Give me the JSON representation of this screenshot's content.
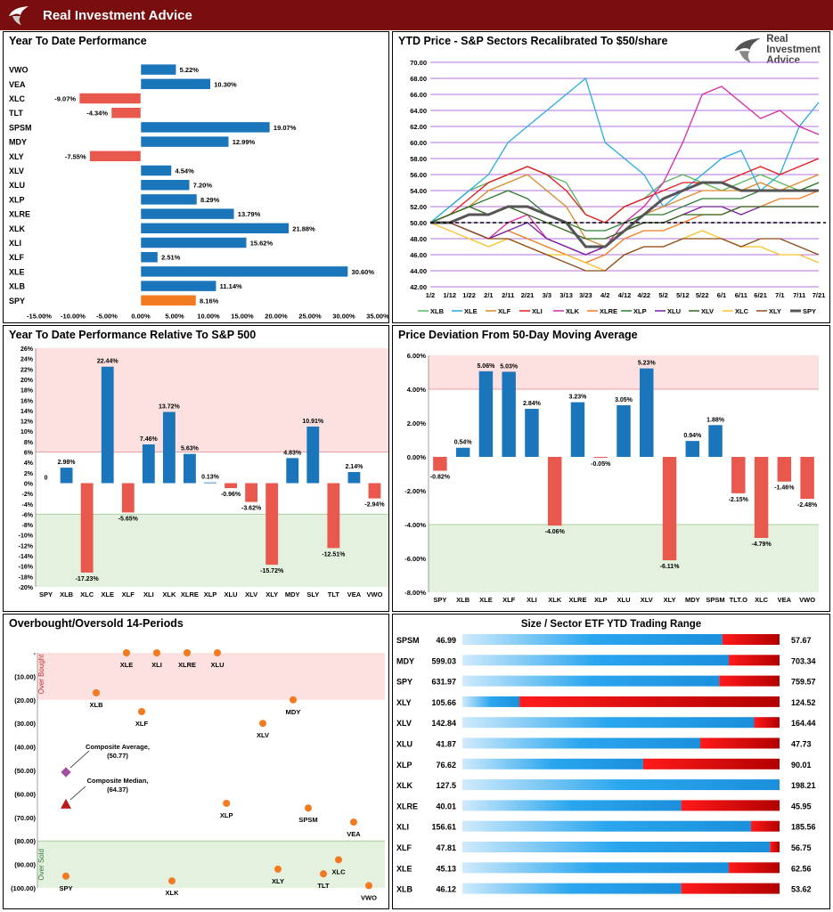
{
  "header": {
    "brand": "Real Investment Advice"
  },
  "panels": {
    "ytd": "Year To Date Performance",
    "price": "YTD Price - S&P Sectors Recalibrated To $50/share",
    "rel": "Year To Date Performance Relative To S&P 500",
    "dev": "Price Deviation From 50-Day Moving Average",
    "obos": "Overbought/Oversold 14-Periods",
    "range": "Size / Sector ETF YTD Trading Range"
  },
  "watermark": {
    "line1": "Real",
    "line2": "Investment",
    "line3": "Advice"
  },
  "colors": {
    "blue": "#1b75bb",
    "red": "#e8584c",
    "orange": "#f47a20",
    "dark_red": "#7a0e0e"
  },
  "chart_data": [
    {
      "id": "ytd",
      "type": "bar",
      "orientation": "horizontal",
      "categories": [
        "VWO",
        "VEA",
        "XLC",
        "TLT",
        "SPSM",
        "MDY",
        "XLY",
        "XLV",
        "XLU",
        "XLP",
        "XLRE",
        "XLK",
        "XLI",
        "XLF",
        "XLE",
        "XLB",
        "SPY"
      ],
      "values": [
        5.22,
        10.3,
        -9.07,
        -4.34,
        19.07,
        12.99,
        -7.55,
        4.54,
        7.2,
        8.29,
        13.79,
        21.88,
        15.62,
        2.51,
        30.6,
        11.14,
        8.16
      ],
      "labels": [
        "5.22%",
        "10.30%",
        "-9.07%",
        "-4.34%",
        "19.07%",
        "12.99%",
        "-7.55%",
        "4.54%",
        "7.20%",
        "8.29%",
        "13.79%",
        "21.88%",
        "15.62%",
        "2.51%",
        "30.60%",
        "11.14%",
        "8.16%"
      ],
      "highlight": "SPY",
      "xlim": [
        -15,
        35
      ],
      "xticks": [
        "-15.00%",
        "-10.00%",
        "-5.00%",
        "0.00%",
        "5.00%",
        "10.00%",
        "15.00%",
        "20.00%",
        "25.00%",
        "30.00%",
        "35.00%"
      ]
    },
    {
      "id": "price",
      "type": "line",
      "ylim": [
        42,
        70
      ],
      "yticks": [
        "42.00",
        "44.00",
        "46.00",
        "48.00",
        "50.00",
        "52.00",
        "54.00",
        "56.00",
        "58.00",
        "60.00",
        "62.00",
        "64.00",
        "66.00",
        "68.00",
        "70.00"
      ],
      "xticks": [
        "1/2",
        "1/12",
        "1/22",
        "2/1",
        "2/11",
        "2/21",
        "3/3",
        "3/13",
        "3/23",
        "4/2",
        "4/12",
        "4/22",
        "5/2",
        "5/12",
        "5/22",
        "6/1",
        "6/11",
        "6/21",
        "7/1",
        "7/11",
        "7/21"
      ],
      "reference_line": 50,
      "series": [
        {
          "name": "XLB",
          "color": "#5cb85c",
          "values": [
            50,
            52,
            54,
            55,
            56,
            57,
            56,
            55,
            51,
            50,
            52,
            53,
            55,
            56,
            55,
            54,
            55,
            56,
            55,
            54,
            55
          ]
        },
        {
          "name": "XLE",
          "color": "#29abe2",
          "values": [
            50,
            52,
            54,
            56,
            60,
            62,
            64,
            66,
            68,
            60,
            58,
            56,
            52,
            54,
            56,
            58,
            59,
            54,
            56,
            62,
            65
          ]
        },
        {
          "name": "XLF",
          "color": "#d98b2b",
          "values": [
            50,
            51,
            52,
            54,
            55,
            56,
            54,
            52,
            48,
            47,
            50,
            51,
            52,
            53,
            54,
            54,
            54,
            55,
            54,
            55,
            56
          ]
        },
        {
          "name": "XLI",
          "color": "#e31a1c",
          "values": [
            50,
            51,
            53,
            55,
            56,
            57,
            56,
            54,
            51,
            50,
            52,
            53,
            54,
            55,
            55,
            55,
            56,
            57,
            56,
            57,
            58
          ]
        },
        {
          "name": "XLK",
          "color": "#d62aa6",
          "values": [
            50,
            50,
            49,
            48,
            50,
            51,
            48,
            47,
            46,
            47,
            50,
            52,
            55,
            60,
            66,
            67,
            65,
            63,
            64,
            62,
            61
          ]
        },
        {
          "name": "XLRE",
          "color": "#f47a20",
          "values": [
            50,
            50,
            49,
            48,
            49,
            48,
            47,
            46,
            45,
            46,
            48,
            49,
            49,
            50,
            51,
            51,
            52,
            52,
            53,
            53,
            54
          ]
        },
        {
          "name": "XLP",
          "color": "#2e7d32",
          "values": [
            50,
            51,
            52,
            53,
            54,
            53,
            51,
            50,
            49,
            49,
            50,
            51,
            51,
            52,
            53,
            53,
            53,
            54,
            54,
            54,
            55
          ]
        },
        {
          "name": "XLU",
          "color": "#7b1fa2",
          "values": [
            50,
            50,
            49,
            48,
            49,
            50,
            48,
            47,
            46,
            47,
            49,
            50,
            50,
            51,
            52,
            52,
            51,
            52,
            52,
            52,
            52
          ]
        },
        {
          "name": "XLV",
          "color": "#33691e",
          "values": [
            50,
            51,
            52,
            51,
            52,
            51,
            50,
            49,
            48,
            48,
            49,
            50,
            50,
            51,
            51,
            51,
            52,
            52,
            52,
            52,
            52
          ]
        },
        {
          "name": "XLC",
          "color": "#fbc02d",
          "values": [
            50,
            49,
            48,
            47,
            48,
            47,
            46,
            46,
            45,
            44,
            46,
            47,
            47,
            48,
            49,
            48,
            47,
            47,
            46,
            46,
            45
          ]
        },
        {
          "name": "XLY",
          "color": "#8d4b1c",
          "values": [
            50,
            50,
            49,
            48,
            48,
            47,
            46,
            45,
            44,
            44,
            46,
            47,
            47,
            48,
            48,
            48,
            47,
            48,
            48,
            47,
            46
          ]
        },
        {
          "name": "SPY",
          "color": "#555555",
          "width": 3,
          "values": [
            50,
            50,
            51,
            51,
            52,
            52,
            51,
            50,
            47,
            47,
            49,
            51,
            53,
            54,
            55,
            55,
            54,
            54,
            54,
            54,
            54
          ]
        }
      ]
    },
    {
      "id": "rel",
      "type": "bar",
      "categories": [
        "SPY",
        "XLB",
        "XLC",
        "XLE",
        "XLF",
        "XLI",
        "XLK",
        "XLRE",
        "XLP",
        "XLU",
        "XLV",
        "XLY",
        "MDY",
        "SLY",
        "TLT",
        "VEA",
        "VWO"
      ],
      "values": [
        0,
        2.98,
        -17.23,
        22.44,
        -5.65,
        7.46,
        13.72,
        5.63,
        0.13,
        -0.96,
        -3.62,
        -15.72,
        4.83,
        10.91,
        -12.51,
        2.14,
        -2.94
      ],
      "labels": [
        "0",
        "2.98%",
        "-17.23%",
        "22.44%",
        "-5.65%",
        "7.46%",
        "13.72%",
        "5.63%",
        "0.13%",
        "-0.96%",
        "-3.62%",
        "-15.72%",
        "4.83%",
        "10.91%",
        "-12.51%",
        "2.14%",
        "-2.94%"
      ],
      "ylim": [
        -20,
        26
      ],
      "yticks": [
        "-20%",
        "-18%",
        "-16%",
        "-14%",
        "-12%",
        "-10%",
        "-8%",
        "-6%",
        "-4%",
        "-2%",
        "0%",
        "2%",
        "4%",
        "6%",
        "8%",
        "10%",
        "12%",
        "14%",
        "16%",
        "18%",
        "20%",
        "22%",
        "24%",
        "26%"
      ],
      "bands": {
        "overbought": [
          6,
          26
        ],
        "oversold": [
          -20,
          -6
        ]
      }
    },
    {
      "id": "dev",
      "type": "bar",
      "categories": [
        "SPY",
        "XLB",
        "XLE",
        "XLF",
        "XLI",
        "XLK",
        "XLRE",
        "XLP",
        "XLU",
        "XLV",
        "XLY",
        "MDY",
        "SPSM",
        "TLT.O",
        "XLC",
        "VEA",
        "VWO"
      ],
      "values": [
        -0.82,
        0.54,
        5.06,
        5.03,
        2.84,
        -4.06,
        3.23,
        -0.05,
        3.05,
        5.23,
        -6.11,
        0.94,
        1.88,
        -2.15,
        -4.79,
        -1.46,
        -2.48
      ],
      "labels": [
        "-0.82%",
        "0.54%",
        "5.06%",
        "5.03%",
        "2.84%",
        "-4.06%",
        "3.23%",
        "-0.05%",
        "3.05%",
        "5.23%",
        "-6.11%",
        "0.94%",
        "1.88%",
        "-2.15%",
        "-4.79%",
        "-1.46%",
        "-2.48%"
      ],
      "ylim": [
        -8,
        6
      ],
      "yticks": [
        "-8.00%",
        "-6.00%",
        "-4.00%",
        "-2.00%",
        "0.00%",
        "2.00%",
        "4.00%",
        "6.00%"
      ],
      "bands": {
        "overbought": [
          4,
          6
        ],
        "oversold": [
          -8,
          -4
        ]
      }
    },
    {
      "id": "obos",
      "type": "scatter",
      "ylim": [
        0,
        100
      ],
      "yticks": [
        "-",
        "(10.00)",
        "(20.00)",
        "(30.00)",
        "(40.00)",
        "(50.00)",
        "(60.00)",
        "(70.00)",
        "(80.00)",
        "(90.00)",
        "(100.00)"
      ],
      "band_labels": {
        "overbought": "Over Bought",
        "oversold": "Over Sold"
      },
      "points": [
        {
          "label": "XLE",
          "x": 2,
          "y": 0
        },
        {
          "label": "XLI",
          "x": 3,
          "y": 0
        },
        {
          "label": "XLRE",
          "x": 4,
          "y": 0
        },
        {
          "label": "XLU",
          "x": 5,
          "y": 0
        },
        {
          "label": "XLB",
          "x": 1,
          "y": 17
        },
        {
          "label": "XLF",
          "x": 2.5,
          "y": 25
        },
        {
          "label": "MDY",
          "x": 7.5,
          "y": 20
        },
        {
          "label": "XLV",
          "x": 6.5,
          "y": 30
        },
        {
          "label": "XLP",
          "x": 5.3,
          "y": 64
        },
        {
          "label": "SPSM",
          "x": 8,
          "y": 66
        },
        {
          "label": "VEA",
          "x": 9.5,
          "y": 72
        },
        {
          "label": "SPY",
          "x": 0,
          "y": 95
        },
        {
          "label": "XLK",
          "x": 3.5,
          "y": 97
        },
        {
          "label": "XLY",
          "x": 7,
          "y": 92
        },
        {
          "label": "TLT",
          "x": 8.5,
          "y": 94
        },
        {
          "label": "XLC",
          "x": 9,
          "y": 88
        },
        {
          "label": "VWO",
          "x": 10,
          "y": 99
        }
      ],
      "composite_average": {
        "label": "Composite Average,",
        "value": "(50.77)",
        "y": 50.77
      },
      "composite_median": {
        "label": "Composite Median,",
        "value": "(64.37)",
        "y": 64.37
      }
    },
    {
      "id": "range",
      "type": "table",
      "rows": [
        {
          "name": "SPSM",
          "low": "46.99",
          "high": "57.67",
          "pos": 0.82
        },
        {
          "name": "MDY",
          "low": "599.03",
          "high": "703.34",
          "pos": 0.84
        },
        {
          "name": "SPY",
          "low": "631.97",
          "high": "759.57",
          "pos": 0.81
        },
        {
          "name": "XLY",
          "low": "105.66",
          "high": "124.52",
          "pos": 0.18
        },
        {
          "name": "XLV",
          "low": "142.84",
          "high": "164.44",
          "pos": 0.92
        },
        {
          "name": "XLU",
          "low": "41.87",
          "high": "47.73",
          "pos": 0.75
        },
        {
          "name": "XLP",
          "low": "76.62",
          "high": "90.01",
          "pos": 0.57
        },
        {
          "name": "XLK",
          "low": "127.5",
          "high": "198.21",
          "pos": 1.0
        },
        {
          "name": "XLRE",
          "low": "40.01",
          "high": "45.95",
          "pos": 0.69
        },
        {
          "name": "XLI",
          "low": "156.61",
          "high": "185.56",
          "pos": 0.91
        },
        {
          "name": "XLF",
          "low": "47.81",
          "high": "56.75",
          "pos": 0.97
        },
        {
          "name": "XLE",
          "low": "45.13",
          "high": "62.56",
          "pos": 0.84
        },
        {
          "name": "XLB",
          "low": "46.12",
          "high": "53.62",
          "pos": 0.69
        }
      ]
    }
  ]
}
